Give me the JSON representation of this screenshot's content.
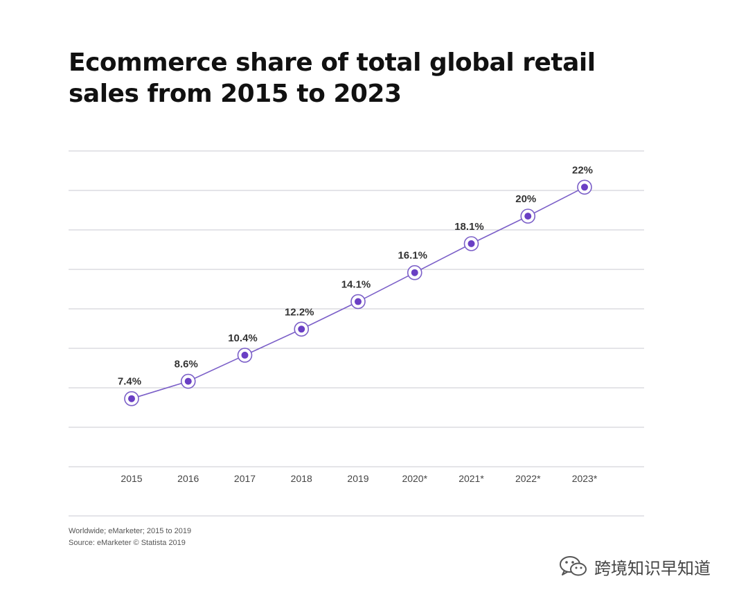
{
  "title_lines": [
    "Ecommerce share of total global retail",
    "sales from 2015 to 2023"
  ],
  "footnotes": [
    "Worldwide; eMarketer; 2015 to 2019",
    "Source: eMarketer © Statista 2019"
  ],
  "watermark": {
    "text": "跨境知识早知道",
    "icon": "wechat-icon"
  },
  "colors": {
    "line": "#7b5fc8",
    "marker": "#6a3fc4",
    "grid": "#c9c9d0",
    "label": "#333333",
    "axis_text": "#444444"
  },
  "chart_data": {
    "type": "line",
    "title": "Ecommerce share of total global retail sales from 2015 to 2023",
    "xlabel": "",
    "ylabel": "",
    "categories": [
      "2015",
      "2016",
      "2017",
      "2018",
      "2019",
      "2020*",
      "2021*",
      "2022*",
      "2023*"
    ],
    "series": [
      {
        "values": [
          7.4,
          8.6,
          10.4,
          12.2,
          14.1,
          16.1,
          18.1,
          20,
          22
        ]
      }
    ],
    "data_labels": [
      "7.4%",
      "8.6%",
      "10.4%",
      "12.2%",
      "14.1%",
      "16.1%",
      "18.1%",
      "20%",
      "22%"
    ],
    "ylim": [
      2.7,
      24.5
    ],
    "grid": true,
    "legend": "none"
  }
}
